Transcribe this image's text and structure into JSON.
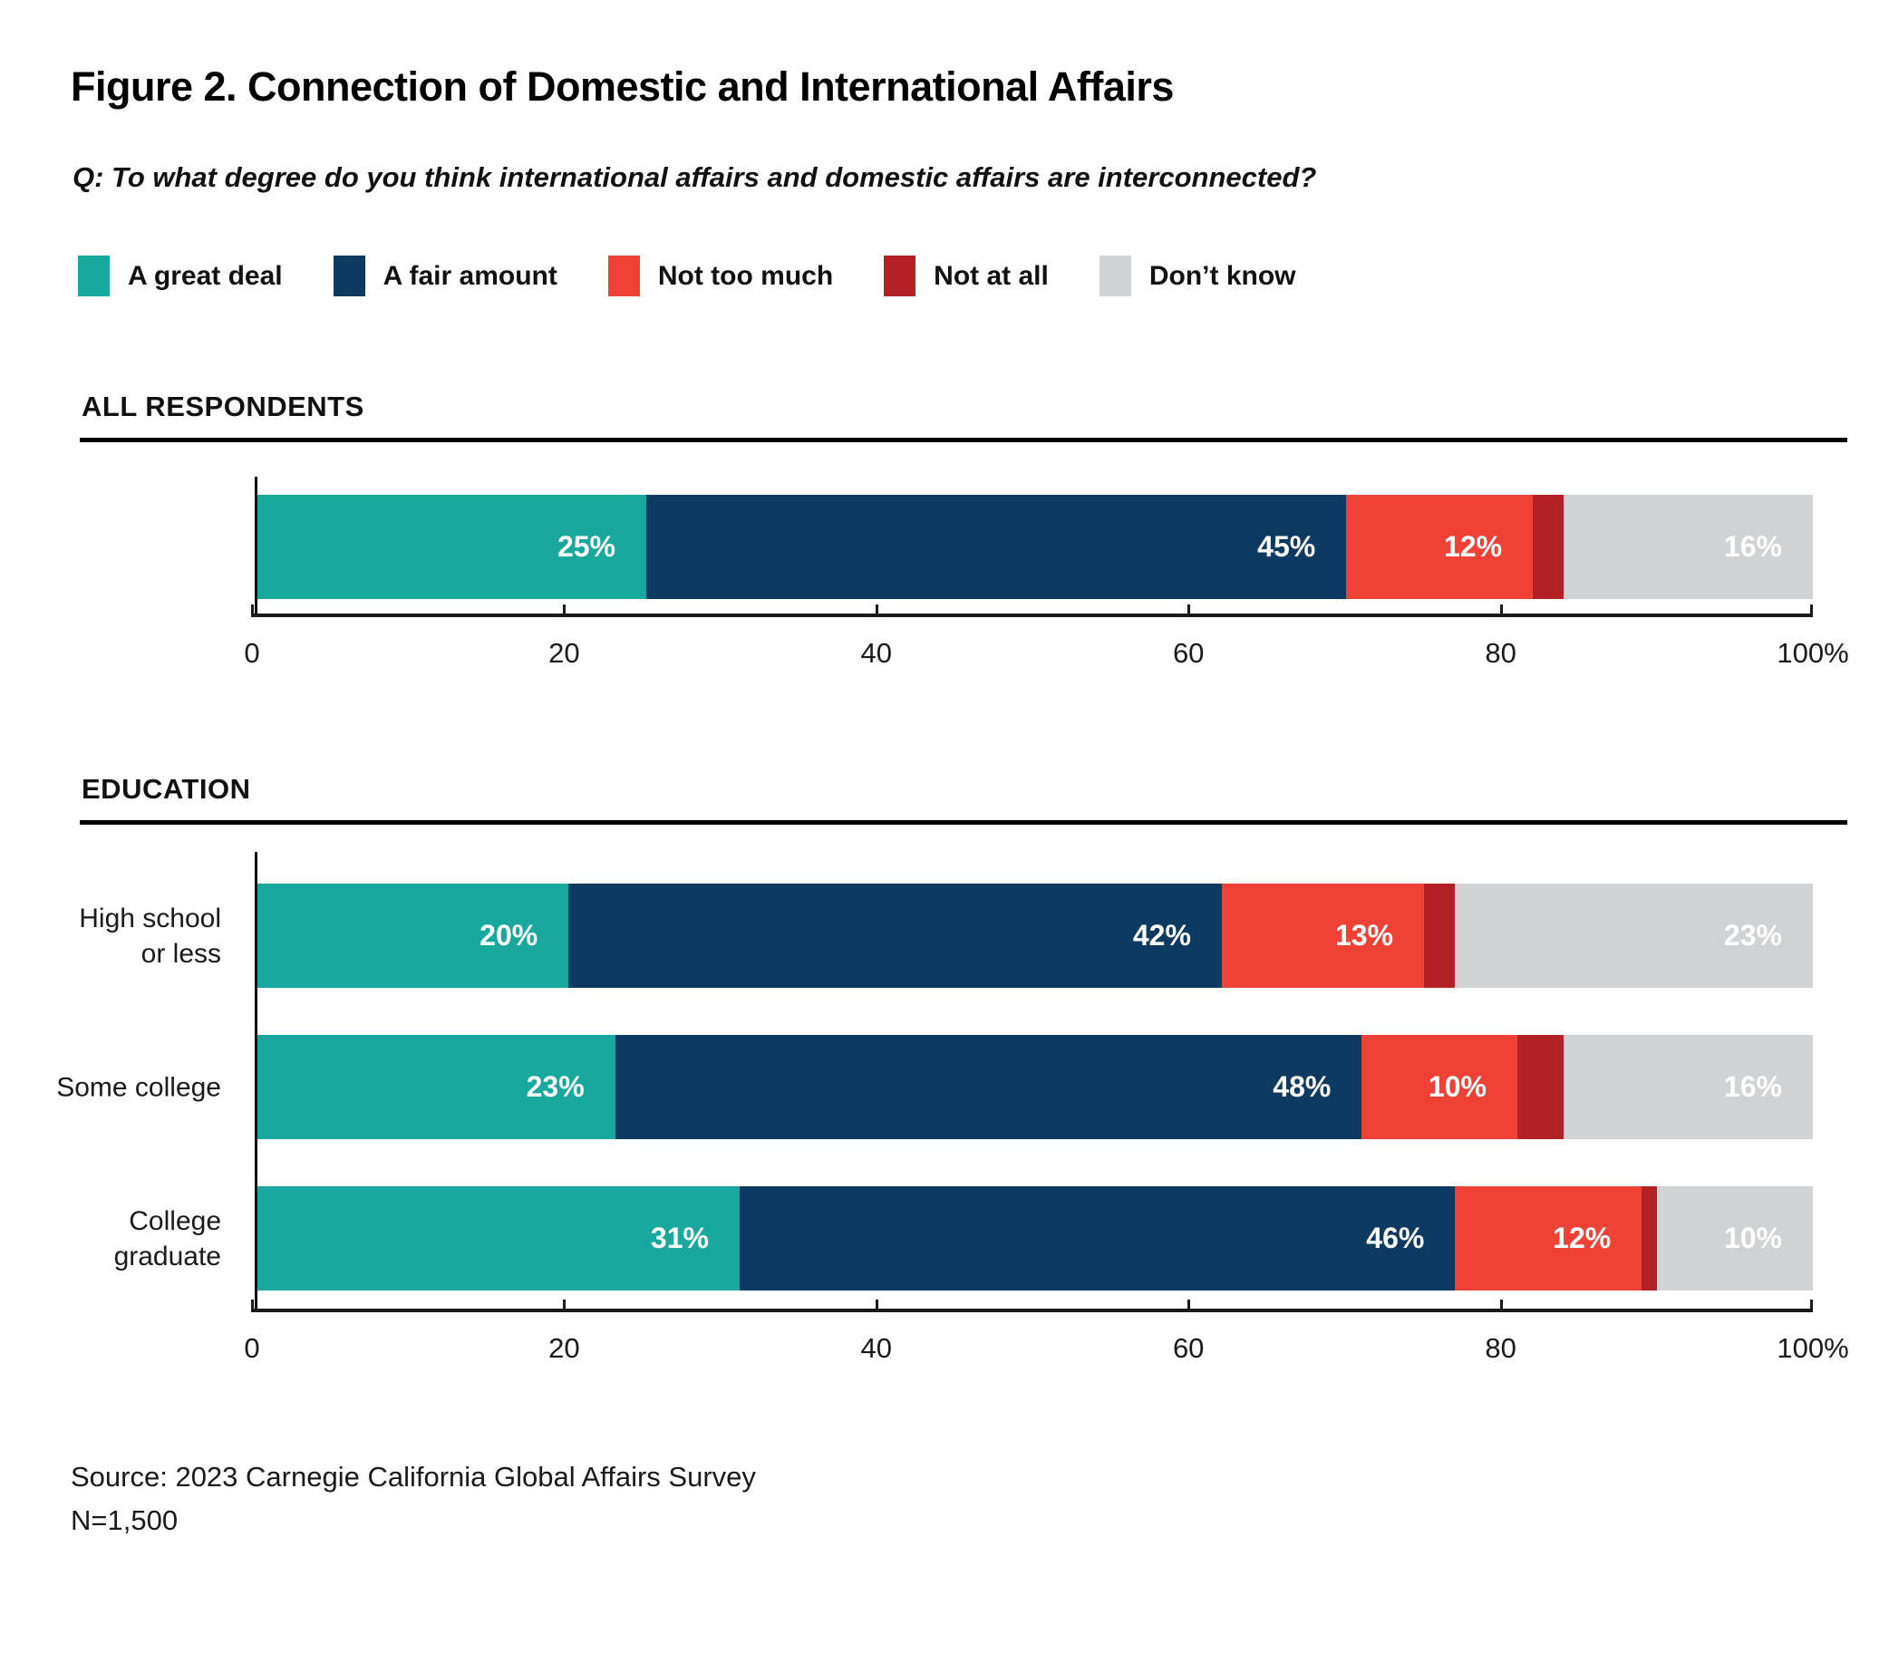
{
  "title": "Figure 2. Connection of Domestic and International Affairs",
  "question": "Q: To what degree do you think international affairs and domestic affairs are interconnected?",
  "source": "Source: 2023 Carnegie California Global Affairs Survey",
  "sample_size": "N=1,500",
  "chart_data": {
    "type": "bar",
    "variant": "horizontal-stacked",
    "xlim": [
      0,
      100
    ],
    "grid": false,
    "legend_position": "top",
    "x_ticks": [
      {
        "value": 0,
        "label": "0"
      },
      {
        "value": 20,
        "label": "20"
      },
      {
        "value": 40,
        "label": "40"
      },
      {
        "value": 60,
        "label": "60"
      },
      {
        "value": 80,
        "label": "80"
      },
      {
        "value": 100,
        "label": "100%"
      }
    ],
    "series": [
      {
        "name": "A great deal",
        "color": "#18A89D"
      },
      {
        "name": "A fair amount",
        "color": "#0D3A60"
      },
      {
        "name": "Not too much",
        "color": "#EF4237"
      },
      {
        "name": "Not at all",
        "color": "#B22126"
      },
      {
        "name": "Don’t know",
        "color": "#D0D2D3"
      }
    ],
    "sections": [
      {
        "header": "ALL RESPONDENTS",
        "rows": [
          {
            "label_lines": [],
            "values": [
              25,
              45,
              12,
              2,
              16
            ],
            "segment_labels": [
              "25%",
              "45%",
              "12%",
              "",
              "16%"
            ]
          }
        ]
      },
      {
        "header": "EDUCATION",
        "rows": [
          {
            "label_lines": [
              "High school",
              "or less"
            ],
            "values": [
              20,
              42,
              13,
              2,
              23
            ],
            "segment_labels": [
              "20%",
              "42%",
              "13%",
              "",
              "23%"
            ]
          },
          {
            "label_lines": [
              "Some college"
            ],
            "values": [
              23,
              48,
              10,
              3,
              16
            ],
            "segment_labels": [
              "23%",
              "48%",
              "10%",
              "",
              "16%"
            ]
          },
          {
            "label_lines": [
              "College",
              "graduate"
            ],
            "values": [
              31,
              46,
              12,
              1,
              10
            ],
            "segment_labels": [
              "31%",
              "46%",
              "12%",
              "",
              "10%"
            ]
          }
        ]
      }
    ]
  }
}
